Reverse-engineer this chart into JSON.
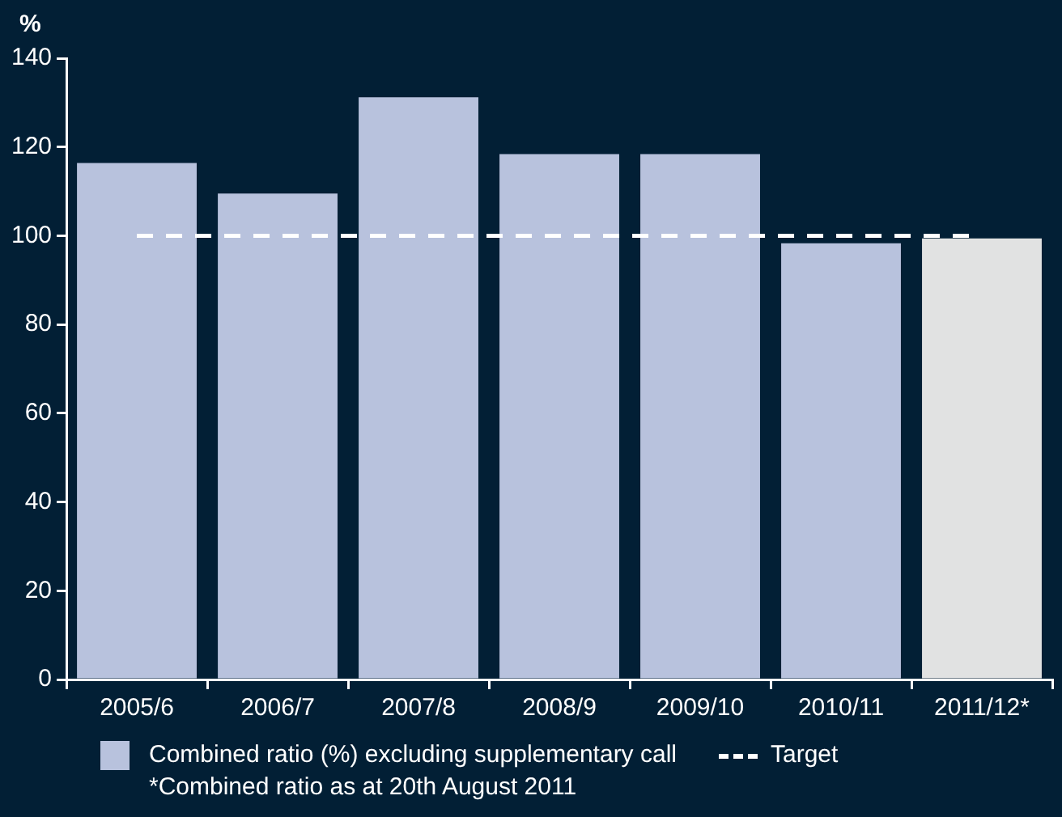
{
  "chart_data": {
    "type": "bar",
    "ylabel": "%",
    "categories": [
      "2005/6",
      "2006/7",
      "2007/8",
      "2008/9",
      "2009/10",
      "2010/11",
      "2011/12*"
    ],
    "series": [
      {
        "name": "Combined ratio (%) excluding supplementary call",
        "color": "#b8c2dd",
        "colors": [
          "#b8c2dd",
          "#b8c2dd",
          "#b8c2dd",
          "#b8c2dd",
          "#b8c2dd",
          "#b8c2dd",
          "#e1e2e2"
        ],
        "values": [
          116.4,
          109.5,
          131.2,
          118.4,
          118.4,
          98.3,
          99.4
        ]
      }
    ],
    "ylim": [
      0,
      140
    ],
    "yticks": [
      0,
      20,
      40,
      60,
      80,
      100,
      120,
      140
    ],
    "grid": false,
    "legend": "bottom",
    "ref_lines": [
      {
        "axis": "y",
        "value": 100,
        "label": "Target",
        "color": "#ffffff",
        "line_style": "dashed"
      }
    ],
    "annotations": [
      "*Combined ratio as at 20th August 2011"
    ]
  }
}
